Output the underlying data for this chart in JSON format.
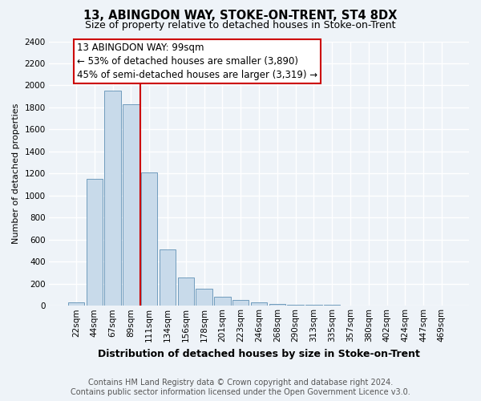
{
  "title": "13, ABINGDON WAY, STOKE-ON-TRENT, ST4 8DX",
  "subtitle": "Size of property relative to detached houses in Stoke-on-Trent",
  "xlabel": "Distribution of detached houses by size in Stoke-on-Trent",
  "ylabel": "Number of detached properties",
  "categories": [
    "22sqm",
    "44sqm",
    "67sqm",
    "89sqm",
    "111sqm",
    "134sqm",
    "156sqm",
    "178sqm",
    "201sqm",
    "223sqm",
    "246sqm",
    "268sqm",
    "290sqm",
    "313sqm",
    "335sqm",
    "357sqm",
    "380sqm",
    "402sqm",
    "424sqm",
    "447sqm",
    "469sqm"
  ],
  "values": [
    30,
    1150,
    1950,
    1830,
    1210,
    510,
    260,
    155,
    80,
    50,
    30,
    20,
    12,
    8,
    6,
    5,
    4,
    3,
    3,
    2,
    2
  ],
  "bar_color": "#c8daea",
  "bar_edge_color": "#6090b5",
  "vline_color": "#cc0000",
  "vline_x": 3.5,
  "annotation_line1": "13 ABINGDON WAY: 99sqm",
  "annotation_line2": "← 53% of detached houses are smaller (3,890)",
  "annotation_line3": "45% of semi-detached houses are larger (3,319) →",
  "annotation_box_edge_color": "#cc0000",
  "annotation_box_face_color": "#ffffff",
  "ylim_max": 2400,
  "yticks": [
    0,
    200,
    400,
    600,
    800,
    1000,
    1200,
    1400,
    1600,
    1800,
    2000,
    2200,
    2400
  ],
  "footer_line1": "Contains HM Land Registry data © Crown copyright and database right 2024.",
  "footer_line2": "Contains public sector information licensed under the Open Government Licence v3.0.",
  "bg_color": "#eef3f8",
  "grid_color": "#ffffff",
  "title_fontsize": 10.5,
  "subtitle_fontsize": 9,
  "ylabel_fontsize": 8,
  "xlabel_fontsize": 9,
  "tick_fontsize": 7.5,
  "annot_fontsize": 8.5,
  "footer_fontsize": 7
}
